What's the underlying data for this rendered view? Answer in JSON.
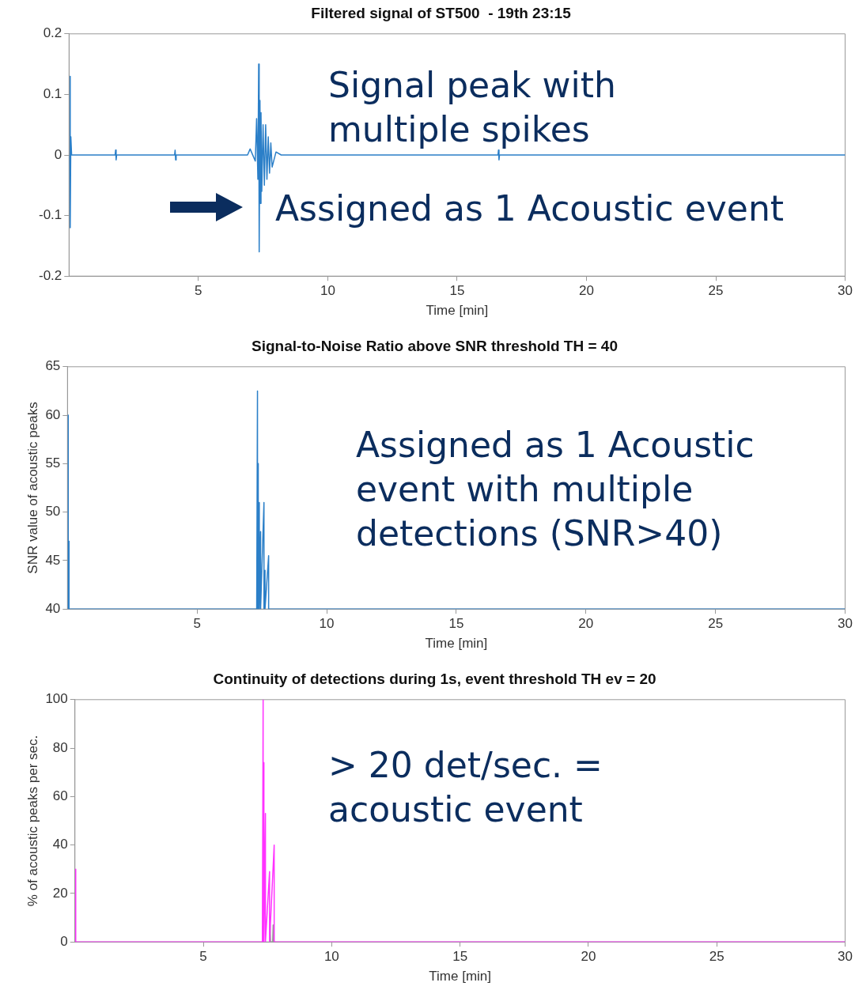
{
  "chart_data": [
    {
      "type": "line",
      "title": "Filtered signal of ST500  - 19th 23:15",
      "xlabel": "Time [min]",
      "xlim": [
        0,
        30
      ],
      "xticks": [
        5,
        10,
        15,
        20,
        25,
        30
      ],
      "ylim": [
        -0.2,
        0.2
      ],
      "yticks": [
        {
          "value": -0.2,
          "label": "-0.2"
        },
        {
          "value": -0.1,
          "label": "-0.1"
        },
        0,
        0.1,
        0.2
      ],
      "grid": false,
      "legend": false,
      "series": [
        {
          "color": "#2b7fc8",
          "x": [
            0.03,
            0.04,
            0.05,
            0.07,
            0.1,
            1.78,
            1.8,
            1.82,
            1.84,
            4.08,
            4.1,
            4.12,
            4.14,
            6.9,
            7.0,
            7.2,
            7.25,
            7.3,
            7.33,
            7.35,
            7.38,
            7.4,
            7.42,
            7.45,
            7.5,
            7.55,
            7.6,
            7.65,
            7.7,
            7.75,
            7.8,
            7.85,
            8.0,
            8.2,
            16.58,
            16.6,
            16.62,
            16.64,
            30
          ],
          "values": [
            0,
            0.13,
            -0.12,
            0.03,
            0,
            0,
            0.008,
            -0.008,
            0,
            0,
            0.008,
            -0.008,
            0,
            0,
            0.01,
            -0.01,
            0.06,
            -0.04,
            0.15,
            -0.16,
            0.09,
            -0.08,
            0.07,
            -0.06,
            0.05,
            -0.05,
            0.05,
            -0.04,
            0.03,
            -0.03,
            0.02,
            -0.02,
            0.005,
            0,
            0,
            0.008,
            -0.008,
            0,
            0
          ]
        }
      ],
      "annotations": [
        "Signal peak with multiple spikes",
        "Assigned as 1 Acoustic event"
      ]
    },
    {
      "type": "line",
      "title": "Signal-to-Noise Ratio above SNR threshold TH = 40",
      "xlabel": "Time [min]",
      "ylabel": "SNR value of acoustic peaks",
      "xlim": [
        0,
        30
      ],
      "xticks": [
        5,
        10,
        15,
        20,
        25,
        30
      ],
      "ylim": [
        40,
        65
      ],
      "yticks": [
        40,
        45,
        50,
        55,
        60,
        65
      ],
      "grid": false,
      "legend": false,
      "series": [
        {
          "color": "#2b7fc8",
          "x": [
            0.03,
            0.03,
            0.03,
            0.06,
            0.06,
            7.3,
            7.33,
            7.33,
            7.36,
            7.36,
            7.4,
            7.4,
            7.45,
            7.45,
            7.58,
            7.58,
            7.62,
            7.62,
            7.76,
            7.76,
            30
          ],
          "values": [
            40,
            60,
            40,
            47,
            40,
            40,
            62.5,
            40,
            55,
            40,
            51,
            40,
            48,
            40,
            51,
            40,
            44,
            40,
            45.5,
            40,
            40
          ]
        }
      ],
      "annotations": [
        "Assigned as 1 Acoustic event with multiple detections (SNR>40)"
      ]
    },
    {
      "type": "line",
      "title": "Continuity of detections during 1s, event threshold TH ev = 20",
      "xlabel": "Time [min]",
      "ylabel": "% of acoustic peaks per sec.",
      "xlim": [
        0,
        30
      ],
      "xticks": [
        5,
        10,
        15,
        20,
        25,
        30
      ],
      "ylim": [
        0,
        100
      ],
      "yticks": [
        0,
        20,
        40,
        60,
        80,
        100
      ],
      "grid": false,
      "legend": false,
      "series": [
        {
          "color": "#ff33ff",
          "x": [
            0.03,
            0.03,
            0.03,
            7.3,
            7.33,
            7.33,
            7.36,
            7.36,
            7.42,
            7.42,
            7.58,
            7.58,
            7.76,
            7.76,
            30
          ],
          "values": [
            0,
            30,
            0,
            0,
            100,
            0,
            74,
            0,
            53,
            0,
            29,
            0,
            40,
            0,
            0
          ]
        },
        {
          "color": "#999999",
          "x": [
            7.6,
            7.6,
            7.62,
            7.7,
            7.72,
            7.72,
            7.8
          ],
          "values": [
            0,
            7,
            0,
            0,
            7,
            0,
            0
          ]
        }
      ],
      "annotations": [
        "> 20 det/sec. = acoustic event"
      ]
    }
  ]
}
